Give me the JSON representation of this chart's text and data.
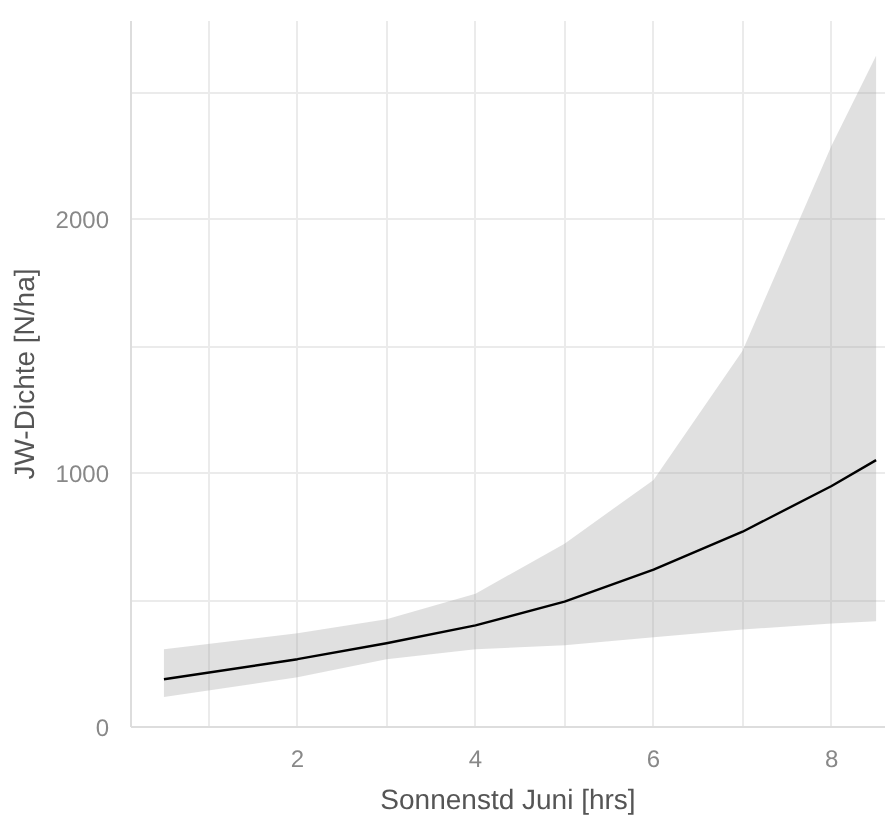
{
  "chart_data": {
    "type": "line",
    "xlabel": "Sonnenstd Juni [hrs]",
    "ylabel": "JW-Dichte [N/ha]",
    "xlim": [
      0.13,
      8.6
    ],
    "ylim": [
      0,
      2780
    ],
    "xticks": [
      {
        "value": 1,
        "label": null
      },
      2,
      {
        "value": 3,
        "label": null
      },
      4,
      {
        "value": 5,
        "label": null
      },
      6,
      {
        "value": 7,
        "label": null
      },
      8
    ],
    "yticks": [
      0,
      {
        "value": 500,
        "label": null
      },
      1000,
      {
        "value": 1500,
        "label": null
      },
      2000,
      {
        "value": 2500,
        "label": null
      }
    ],
    "grid": true,
    "series": [
      {
        "color": "#000000",
        "x": [
          0.5,
          2,
          3,
          4,
          5,
          6,
          7,
          8,
          8.5
        ],
        "values": [
          188,
          267,
          330,
          400,
          494,
          620,
          769,
          949,
          1051
        ],
        "lower": [
          118,
          196,
          267,
          306,
          322,
          353,
          384,
          408,
          416
        ],
        "upper": [
          306,
          369,
          424,
          525,
          722,
          973,
          1482,
          2290,
          2643
        ]
      }
    ]
  }
}
